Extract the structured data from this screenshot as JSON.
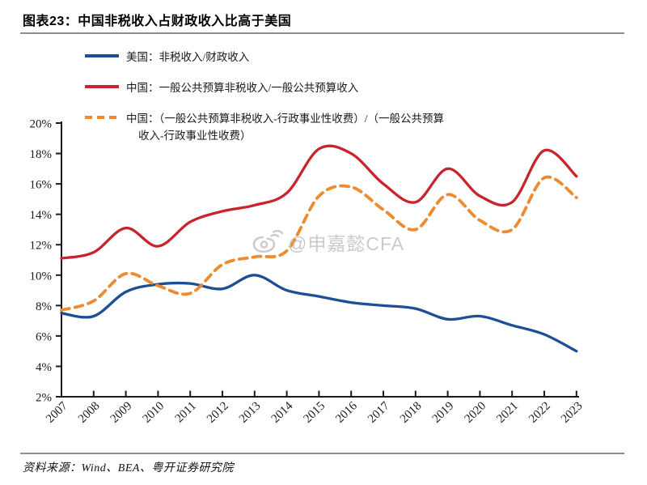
{
  "header": {
    "title": "图表23：中国非税收入占财政收入比高于美国"
  },
  "legend": {
    "items": [
      {
        "key": "us",
        "label": "美国：非税收入/财政收入"
      },
      {
        "key": "china_nontax",
        "label": "中国：一般公共预算非税收入/一般公共预算收入"
      },
      {
        "key": "china_nontax_ex_fees",
        "label_line1": "中国：（一般公共预算非税收入-行政事业性收费）/（一般公共预算",
        "label_line2": "收入-行政事业性收费）"
      }
    ]
  },
  "watermark": {
    "text": "@申嘉懿CFA",
    "icon": "weibo-eye-icon"
  },
  "footer": {
    "source_label": "资料来源：Wind、BEA、粤开证券研究院"
  },
  "colors": {
    "us_blue": "#1d4e96",
    "china_red": "#c8242c",
    "china_adj_orange": "#ed8b33",
    "axis": "#1a1a1a",
    "watermark_gray": "#c6c6c6"
  },
  "chart_data": {
    "type": "line",
    "title": "中国非税收入占财政收入比高于美国",
    "x": [
      2007,
      2008,
      2009,
      2010,
      2011,
      2012,
      2013,
      2014,
      2015,
      2016,
      2017,
      2018,
      2019,
      2020,
      2021,
      2022,
      2023
    ],
    "xtick_labels": [
      "2007",
      "2008",
      "2009",
      "2010",
      "2011",
      "2012",
      "2013",
      "2014",
      "2015",
      "2016",
      "2017",
      "2018",
      "2019",
      "2020",
      "2021",
      "2022",
      "2023"
    ],
    "ylim": [
      2,
      20
    ],
    "ytick_step": 2,
    "ytick_labels": [
      "2%",
      "4%",
      "6%",
      "8%",
      "10%",
      "12%",
      "14%",
      "16%",
      "18%",
      "20%"
    ],
    "unit": "%",
    "grid": false,
    "legend_position": "top-left",
    "series": [
      {
        "name": "美国：非税收入/财政收入",
        "color_key": "us_blue",
        "line_style": "solid",
        "values": [
          7.5,
          7.3,
          8.9,
          9.4,
          9.45,
          9.1,
          10.0,
          9.0,
          8.6,
          8.2,
          8.0,
          7.8,
          7.1,
          7.3,
          6.7,
          6.1,
          5.0
        ]
      },
      {
        "name": "中国：一般公共预算非税收入/一般公共预算收入",
        "color_key": "china_red",
        "line_style": "solid",
        "values": [
          11.1,
          11.5,
          13.1,
          11.9,
          13.5,
          14.2,
          14.6,
          15.4,
          18.3,
          18.0,
          16.0,
          14.8,
          17.0,
          15.2,
          14.8,
          18.2,
          16.5
        ]
      },
      {
        "name": "中国：（一般公共预算非税收入-行政事业性收费）/（一般公共预算收入-行政事业性收费）",
        "color_key": "china_adj_orange",
        "line_style": "dashed",
        "values": [
          7.7,
          8.3,
          10.1,
          9.3,
          8.8,
          10.7,
          11.2,
          11.6,
          15.2,
          15.8,
          14.3,
          13.0,
          15.3,
          13.6,
          13.0,
          16.4,
          15.1
        ]
      }
    ]
  }
}
